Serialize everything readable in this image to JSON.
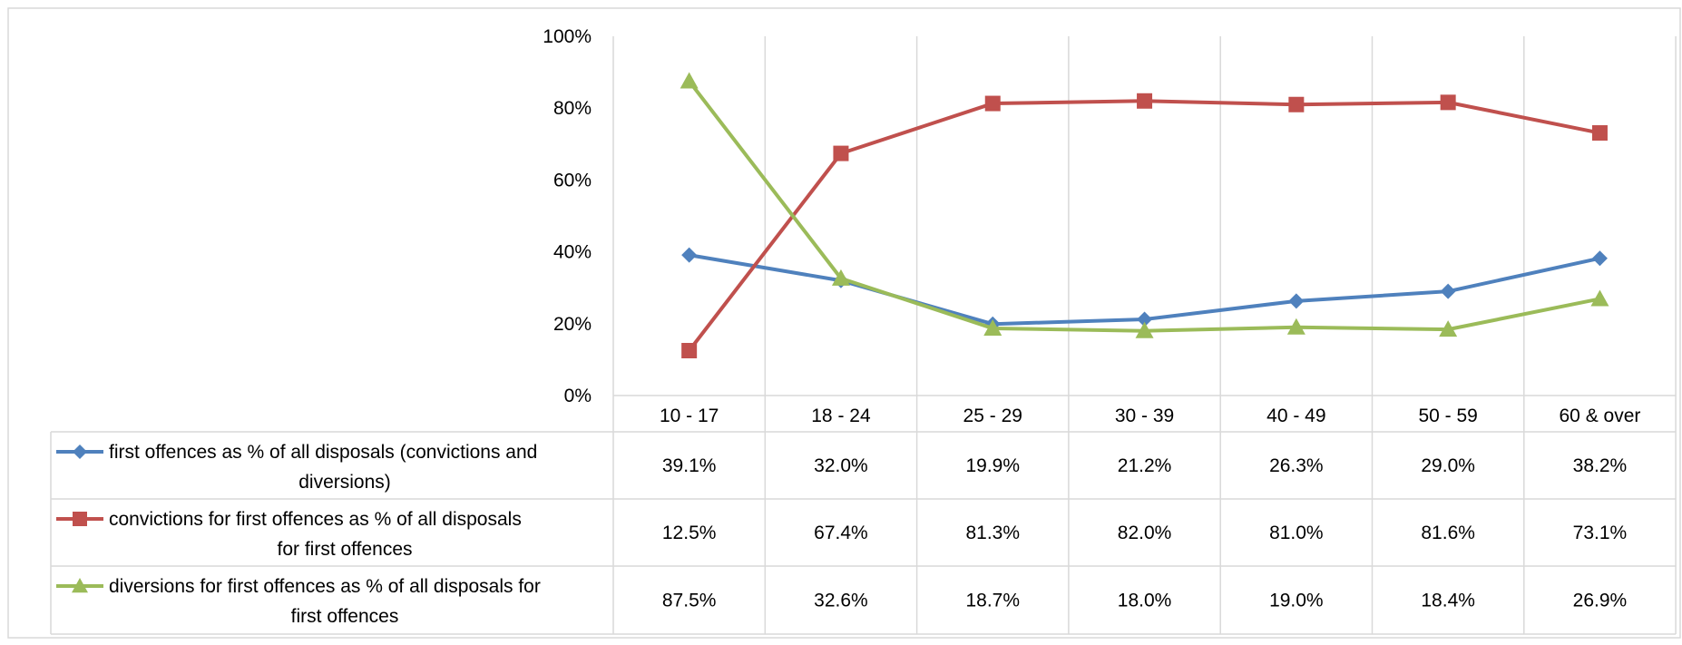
{
  "chart_data": {
    "type": "line",
    "title": "",
    "xlabel": "",
    "ylabel": "",
    "categories": [
      "10 - 17",
      "18 - 24",
      "25 - 29",
      "30 - 39",
      "40 - 49",
      "50 - 59",
      "60 & over"
    ],
    "ylim": [
      0,
      100
    ],
    "yticks": [
      "0%",
      "20%",
      "40%",
      "60%",
      "80%",
      "100%"
    ],
    "grid": "vertical",
    "legend": "data table",
    "series": [
      {
        "name_lines": [
          "first offences as % of all disposals (convictions and",
          "diversions)"
        ],
        "values": [
          39.1,
          32.0,
          19.9,
          21.2,
          26.3,
          29.0,
          38.2
        ],
        "labels": [
          "39.1%",
          "32.0%",
          "19.9%",
          "21.2%",
          "26.3%",
          "29.0%",
          "38.2%"
        ],
        "color": "#4F81BD",
        "marker": "diamond"
      },
      {
        "name_lines": [
          "convictions for first offences as % of all disposals",
          "for first offences"
        ],
        "values": [
          12.5,
          67.4,
          81.3,
          82.0,
          81.0,
          81.6,
          73.1
        ],
        "labels": [
          "12.5%",
          "67.4%",
          "81.3%",
          "82.0%",
          "81.0%",
          "81.6%",
          "73.1%"
        ],
        "color": "#C0504D",
        "marker": "square"
      },
      {
        "name_lines": [
          "diversions for first offences as % of all disposals for",
          "first offences"
        ],
        "values": [
          87.5,
          32.6,
          18.7,
          18.0,
          19.0,
          18.4,
          26.9
        ],
        "labels": [
          "87.5%",
          "32.6%",
          "18.7%",
          "18.0%",
          "19.0%",
          "18.4%",
          "26.9%"
        ],
        "color": "#9BBB59",
        "marker": "triangle"
      }
    ]
  }
}
